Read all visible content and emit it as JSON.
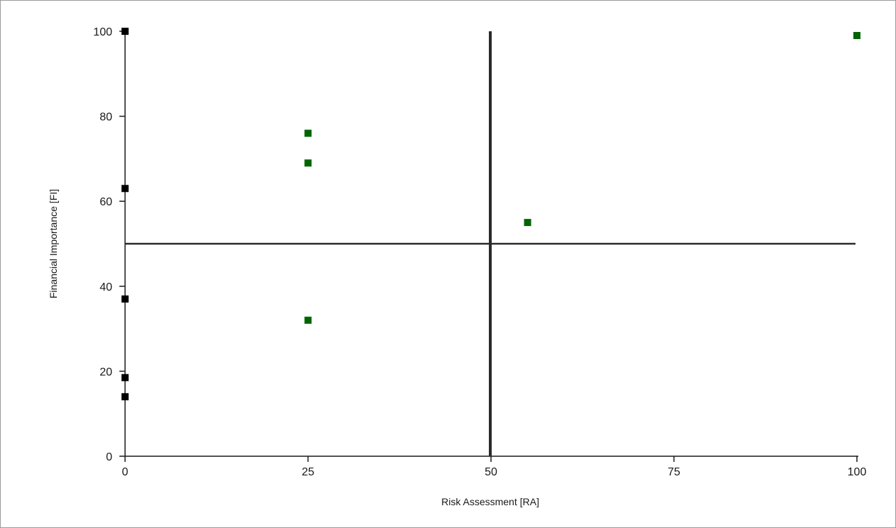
{
  "chart_data": {
    "type": "scatter",
    "title": "",
    "xlabel": "Risk Assessment [RA]",
    "ylabel": "Financial Importance [FI]",
    "xlim": [
      0,
      100
    ],
    "ylim": [
      0,
      100
    ],
    "xticks": [
      0,
      25,
      50,
      75,
      100
    ],
    "yticks": [
      0,
      20,
      40,
      60,
      80,
      100
    ],
    "grid": false,
    "reference_lines": {
      "x": 50,
      "y": 50
    },
    "series": [
      {
        "color": "#000000",
        "points": [
          {
            "x": 0,
            "y": 100
          },
          {
            "x": 0,
            "y": 63
          },
          {
            "x": 0,
            "y": 37
          },
          {
            "x": 0,
            "y": 18.5
          },
          {
            "x": 0,
            "y": 14
          }
        ]
      },
      {
        "color": "#006400",
        "points": [
          {
            "x": 25,
            "y": 76
          },
          {
            "x": 25,
            "y": 69
          },
          {
            "x": 25,
            "y": 32
          },
          {
            "x": 55,
            "y": 55
          },
          {
            "x": 100,
            "y": 99
          }
        ]
      }
    ]
  }
}
